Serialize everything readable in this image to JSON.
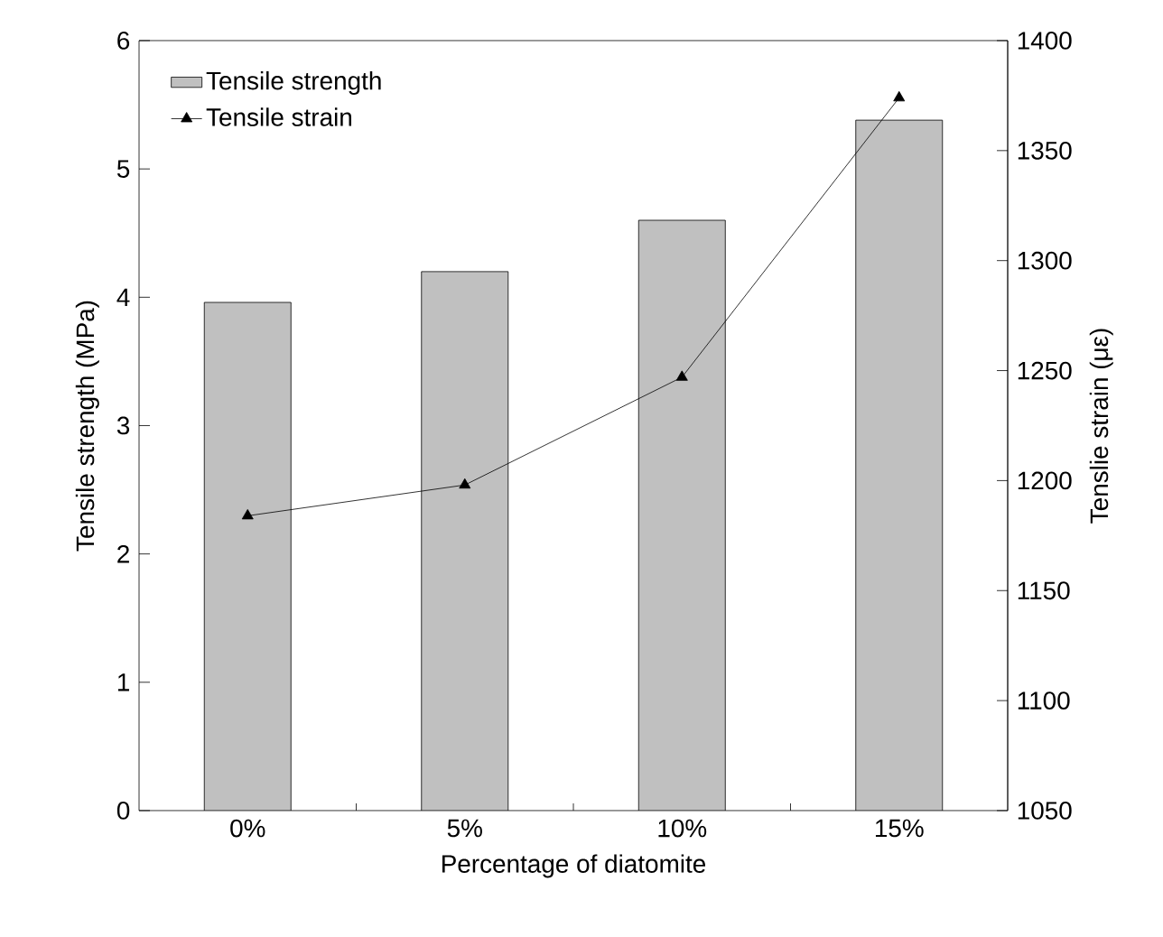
{
  "chart_data": {
    "type": "bar",
    "categories": [
      "0%",
      "5%",
      "10%",
      "15%"
    ],
    "xlabel": "Percentage of diatomite",
    "ylabel": "Tensile strength (MPa)",
    "y2label": "Tenslie strain (με)",
    "ylim": [
      0,
      6
    ],
    "yticks": [
      0,
      1,
      2,
      3,
      4,
      5,
      6
    ],
    "y2lim": [
      1050,
      1400
    ],
    "y2ticks": [
      1050,
      1100,
      1150,
      1200,
      1250,
      1300,
      1350,
      1400
    ],
    "legend": "top left",
    "marker": "triangle",
    "series": [
      {
        "name": "Tensile strength",
        "color": "#c0c0c0",
        "values": [
          3.96,
          4.2,
          4.6,
          5.38
        ]
      },
      {
        "name": "Tensile strain",
        "type": "line",
        "axis": "y2",
        "color": "#000000",
        "values": [
          1184,
          1198,
          1247,
          1374
        ]
      }
    ]
  }
}
